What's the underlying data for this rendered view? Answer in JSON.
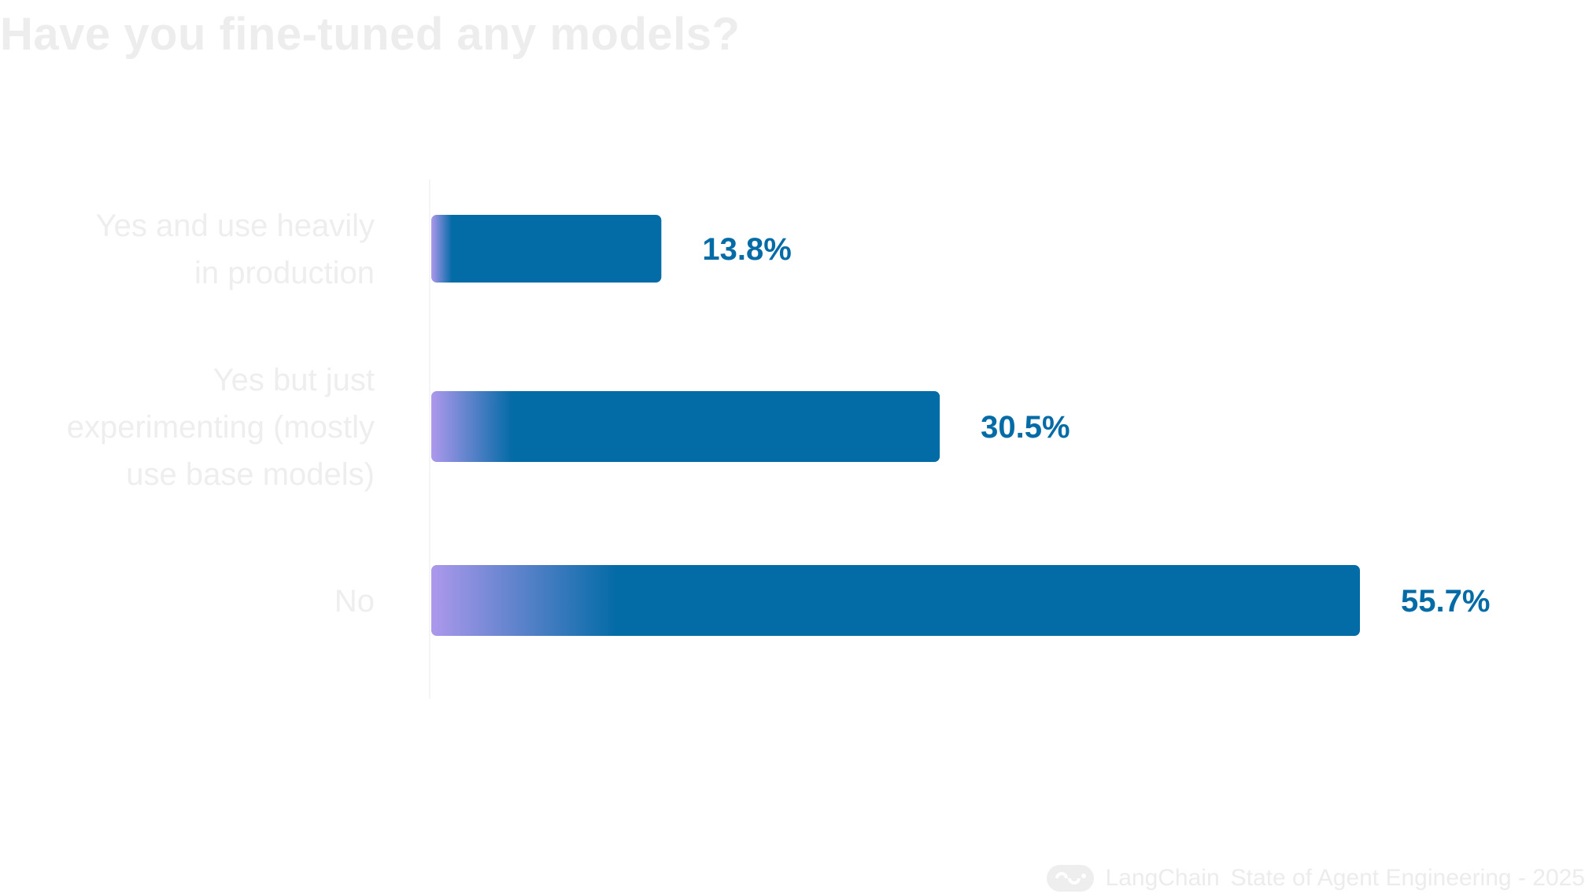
{
  "chart_data": {
    "type": "bar",
    "orientation": "horizontal",
    "title": "Have you fine-tuned any models?",
    "categories": [
      [
        "Yes and use heavily",
        "in production"
      ],
      [
        "Yes but just",
        "experimenting (mostly",
        "use base models)"
      ],
      [
        "No"
      ]
    ],
    "values": [
      13.8,
      30.5,
      55.7
    ],
    "value_labels": [
      "13.8%",
      "30.5%",
      "55.7%"
    ],
    "unit": "%",
    "xlim": [
      0,
      58
    ],
    "xlabel": "",
    "ylabel": "",
    "grid": false,
    "colors": {
      "bar": "#036ba6",
      "bar_gradient_start": "#ad98ec",
      "value_label": "#036ba6",
      "category_label": "#eeeeee",
      "axis_line": "#f4f4f4"
    }
  },
  "footer": {
    "brand": "LangChain",
    "text": "State of Agent Engineering - 2025",
    "icon": "langchain-logo-icon"
  }
}
